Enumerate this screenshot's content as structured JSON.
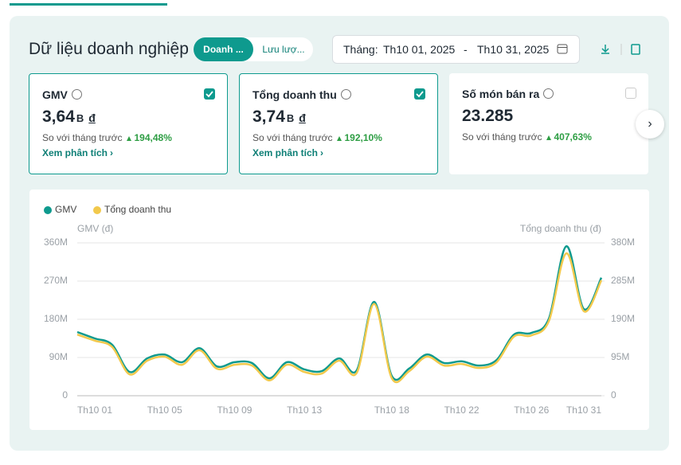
{
  "header": {
    "title": "Dữ liệu doanh nghiệp",
    "tabs": [
      "Doanh ...",
      "Lưu lượ..."
    ]
  },
  "date_filter": {
    "label": "Tháng:",
    "start": "Th10 01, 2025",
    "separator": "-",
    "end": "Th10 31, 2025"
  },
  "cards": [
    {
      "title": "GMV",
      "value": "3,64",
      "unit": "B",
      "currency": "đ",
      "compare": "So với tháng trước",
      "change": "194,48%",
      "link": "Xem phân tích",
      "checked": true
    },
    {
      "title": "Tổng doanh thu",
      "value": "3,74",
      "unit": "B",
      "currency": "đ",
      "compare": "So với tháng trước",
      "change": "192,10%",
      "link": "Xem phân tích",
      "checked": true
    },
    {
      "title": "Số món bán ra",
      "value": "23.285",
      "compare": "So với tháng trước",
      "change": "407,63%",
      "checked": false
    }
  ],
  "chart_data": {
    "type": "line",
    "y_label": "GMV (đ)",
    "y2_label": "Tổng doanh thu (đ)",
    "categories": [
      "Th10 01",
      null,
      null,
      null,
      "Th10 05",
      null,
      null,
      null,
      "Th10 09",
      null,
      null,
      null,
      "Th10 13",
      null,
      null,
      null,
      null,
      "Th10 18",
      null,
      null,
      null,
      "Th10 22",
      null,
      null,
      null,
      "Th10 26",
      null,
      null,
      null,
      null,
      "Th10 31"
    ],
    "series": [
      {
        "name": "GMV",
        "color": "#0e9a8e",
        "values": [
          150,
          135,
          120,
          56,
          88,
          97,
          79,
          112,
          69,
          79,
          77,
          41,
          79,
          62,
          58,
          88,
          60,
          221,
          47,
          64,
          97,
          77,
          81,
          71,
          84,
          144,
          148,
          182,
          352,
          204,
          278
        ]
      },
      {
        "name": "Tổng doanh thu",
        "color": "#f2c94c",
        "axis": "y2",
        "values": [
          152,
          137,
          121,
          53,
          87,
          97,
          77,
          113,
          67,
          77,
          75,
          38,
          77,
          59,
          55,
          87,
          57,
          228,
          44,
          61,
          97,
          75,
          79,
          69,
          83,
          147,
          150,
          186,
          354,
          210,
          287
        ]
      }
    ],
    "ylim": [
      0,
      360
    ],
    "yticks": [
      0,
      {
        "value": 90,
        "label": "90M"
      },
      {
        "value": 180,
        "label": "180M"
      },
      {
        "value": 270,
        "label": "270M"
      },
      {
        "value": 360,
        "label": "360M"
      }
    ],
    "y2lim": [
      0,
      380
    ],
    "y2ticks": [
      0,
      {
        "value": 95,
        "label": "95M"
      },
      {
        "value": 190,
        "label": "190M"
      },
      {
        "value": 285,
        "label": "285M"
      },
      {
        "value": 380,
        "label": "380M"
      }
    ],
    "grid": true,
    "legend": "top-left"
  }
}
